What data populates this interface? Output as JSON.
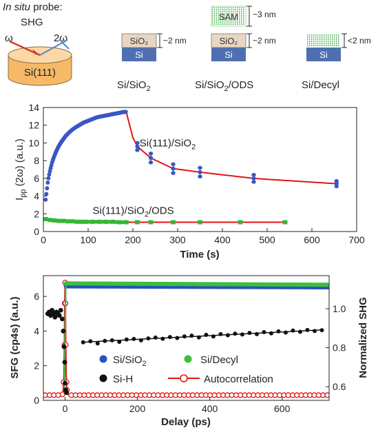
{
  "top": {
    "probe_title_italic": "In situ",
    "probe_title_rest": " probe:",
    "probe_technique": "SHG",
    "omega_label": "ω",
    "two_omega_label": "2ω",
    "crystal_label": "Si(111)",
    "samples": [
      {
        "layers": [
          "SiO₂",
          "Si"
        ],
        "thickness": "~2 nm",
        "caption_main": "Si/SiO",
        "caption_sub": "2",
        "caption_rest": ""
      },
      {
        "layers": [
          "SAM",
          "SiO₂",
          "Si"
        ],
        "thickness_top": "~3 nm",
        "thickness": "~2 nm",
        "caption_main": "Si/SiO",
        "caption_sub": "2",
        "caption_rest": "/ODS"
      },
      {
        "layers": [
          "Si"
        ],
        "thickness": "<2 nm",
        "caption_main": "Si/Decyl",
        "caption_sub": "",
        "caption_rest": ""
      }
    ],
    "colors": {
      "si": "#4f6fb0",
      "sio2": "#e8d6c2",
      "sam": "#5fc06a",
      "crystal": "#f7c88e"
    }
  },
  "chart_data": [
    {
      "type": "scatter",
      "title": "",
      "xlabel": "Time (s)",
      "ylabel_main": "I",
      "ylabel_sub": "pp",
      "ylabel_rest": " (2ω) (a.u.)",
      "xlim": [
        0,
        700
      ],
      "ylim": [
        0,
        14
      ],
      "xticks": [
        0,
        100,
        200,
        300,
        400,
        500,
        600,
        700
      ],
      "yticks": [
        0,
        2,
        4,
        6,
        8,
        10,
        12,
        14
      ],
      "grid": false,
      "annotations": [
        {
          "text_main": "Si(111)/SiO",
          "text_sub": "2",
          "text_rest": "",
          "x": 215,
          "y": 9.6
        },
        {
          "text_main": "Si(111)/SiO",
          "text_sub": "2",
          "text_rest": "/ODS",
          "x": 110,
          "y": 2.0
        }
      ],
      "series": [
        {
          "label": "Si(111)/SiO2 growth",
          "color": "#3a56c6",
          "kind": "dense_growth",
          "x": [
            5,
            8,
            10,
            12,
            15,
            18,
            20,
            25,
            30,
            35,
            40,
            50,
            60,
            70,
            80,
            90,
            100,
            110,
            120,
            130,
            140,
            150,
            160,
            170,
            180,
            185
          ],
          "y": [
            3.6,
            4.8,
            5.6,
            6.2,
            6.9,
            7.5,
            7.9,
            8.6,
            9.2,
            9.7,
            10.1,
            10.8,
            11.3,
            11.7,
            12.0,
            12.3,
            12.5,
            12.7,
            12.9,
            13.0,
            13.1,
            13.2,
            13.3,
            13.4,
            13.5,
            13.5
          ]
        },
        {
          "label": "Si(111)/SiO2 later",
          "color": "#3a56c6",
          "kind": "error_points",
          "x": [
            210,
            240,
            290,
            350,
            470,
            655
          ],
          "y": [
            9.6,
            8.3,
            7.1,
            6.7,
            6.0,
            5.4
          ],
          "err": [
            0.4,
            0.5,
            0.5,
            0.5,
            0.4,
            0.3
          ]
        },
        {
          "label": "SiO2 fit",
          "color": "#e01414",
          "kind": "line",
          "x": [
            185,
            200,
            210,
            240,
            290,
            350,
            470,
            655
          ],
          "y": [
            13.5,
            10.6,
            9.6,
            8.3,
            7.1,
            6.7,
            6.0,
            5.4
          ]
        },
        {
          "label": "Si(111)/SiO2/ODS",
          "color": "#35b835",
          "kind": "ods_points",
          "x": [
            5,
            15,
            25,
            35,
            45,
            55,
            65,
            75,
            85,
            95,
            110,
            125,
            140,
            155,
            170,
            185,
            210,
            240,
            290,
            350,
            440,
            540
          ],
          "y": [
            1.4,
            1.3,
            1.25,
            1.2,
            1.2,
            1.15,
            1.15,
            1.1,
            1.1,
            1.1,
            1.1,
            1.1,
            1.1,
            1.1,
            1.05,
            1.05,
            1.05,
            1.05,
            1.05,
            1.05,
            1.05,
            1.05
          ]
        },
        {
          "label": "ODS fit",
          "color": "#e01414",
          "kind": "line",
          "x": [
            185,
            540
          ],
          "y": [
            1.05,
            1.05
          ]
        }
      ]
    },
    {
      "type": "scatter",
      "title": "",
      "xlabel": "Delay (ps)",
      "ylabel": "SFG (cp4s) (a.u.)",
      "y2label": "Normalized SHG",
      "xlim": [
        -60,
        730
      ],
      "ylim": [
        0,
        7.2
      ],
      "y2lim": [
        0.53,
        1.17
      ],
      "xticks": [
        0,
        200,
        400,
        600
      ],
      "yticks": [
        0,
        2,
        4,
        6
      ],
      "y2ticks": [
        0.6,
        0.8,
        1.0
      ],
      "y2ticklabels": [
        "0.6",
        "0.8",
        "1.0"
      ],
      "grid": false,
      "legend": {
        "position": "bottom",
        "entries": [
          {
            "label_main": "Si/SiO",
            "label_sub": "2",
            "color": "#2a4fbf",
            "marker": "dot"
          },
          {
            "label_main": "Si/Decyl",
            "label_sub": "",
            "color": "#3cbf3c",
            "marker": "dot"
          },
          {
            "label_main": "Si-H",
            "label_sub": "",
            "color": "#111111",
            "marker": "dot"
          },
          {
            "label_main": "Autocorrelation",
            "label_sub": "",
            "color": "#e01414",
            "marker": "ring-line"
          }
        ]
      },
      "series": [
        {
          "label": "Si/SiO2",
          "color": "#2a4fbf",
          "axis": "y2",
          "kind": "dense_flat",
          "x": [
            0,
            730
          ],
          "y": [
            1.115,
            1.11
          ]
        },
        {
          "label": "Si/Decyl",
          "color": "#3cbf3c",
          "axis": "y2",
          "kind": "dense_flat",
          "x": [
            0,
            730
          ],
          "y": [
            1.13,
            1.123
          ]
        },
        {
          "label": "Si-H early",
          "color": "#111111",
          "axis": "y",
          "kind": "cluster",
          "x": [
            -48,
            -44,
            -40,
            -36,
            -32,
            -28,
            -24,
            -20,
            -16,
            -12,
            -8,
            -5,
            -3,
            -1,
            0,
            2,
            4
          ],
          "y": [
            5.0,
            5.1,
            4.9,
            5.2,
            5.0,
            4.8,
            5.1,
            5.0,
            4.9,
            5.2,
            4.7,
            4.0,
            3.1,
            2.2,
            1.0,
            0.6,
            0.45
          ]
        },
        {
          "label": "Si-H late",
          "color": "#111111",
          "axis": "y2",
          "kind": "scatter_fit",
          "x": [
            50,
            70,
            90,
            110,
            130,
            150,
            170,
            190,
            210,
            230,
            250,
            270,
            290,
            310,
            330,
            350,
            370,
            390,
            410,
            430,
            450,
            470,
            490,
            510,
            530,
            550,
            570,
            590,
            610,
            630,
            650,
            670,
            690,
            710
          ],
          "y": [
            0.828,
            0.833,
            0.822,
            0.835,
            0.838,
            0.83,
            0.842,
            0.845,
            0.838,
            0.848,
            0.852,
            0.846,
            0.855,
            0.85,
            0.858,
            0.862,
            0.853,
            0.866,
            0.858,
            0.87,
            0.864,
            0.872,
            0.868,
            0.876,
            0.87,
            0.88,
            0.874,
            0.884,
            0.878,
            0.888,
            0.882,
            0.891,
            0.886,
            0.89
          ],
          "fit": [
            [
              45,
              0.828
            ],
            [
              715,
              0.892
            ]
          ]
        },
        {
          "label": "Autocorrelation",
          "color": "#e01414",
          "axis": "y",
          "kind": "autocorr",
          "x": [
            -55,
            -40,
            -25,
            -12,
            -7,
            -5,
            -3,
            -2,
            -1,
            0,
            1,
            2,
            3,
            5,
            7,
            12,
            25,
            60,
            150,
            300,
            450,
            600,
            730
          ],
          "y": [
            0.3,
            0.3,
            0.3,
            0.3,
            0.35,
            0.6,
            1.5,
            3.2,
            5.6,
            6.8,
            5.6,
            3.2,
            1.5,
            0.6,
            0.35,
            0.3,
            0.3,
            0.3,
            0.3,
            0.3,
            0.3,
            0.3,
            0.3
          ]
        }
      ]
    }
  ]
}
